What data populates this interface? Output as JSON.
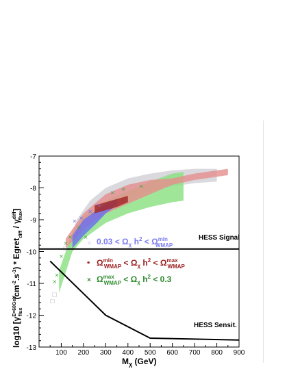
{
  "chart_data": {
    "type": "scatter",
    "xlabel_main": "M",
    "xlabel_sub": "χ",
    "xlabel_unit": " (GeV)",
    "ylabel": "log10 [γ_flux^{E=60GeV} (cm⁻².s⁻¹) * Egret_diff / γ_flux^diff]",
    "ylabel_parts": {
      "lead": "log10 [γ",
      "sup1": "E=60GeV",
      "sub1": "flux",
      "mid": "(cm",
      "sup2": "-2",
      "mid2": ".s",
      "sup3": "-1",
      "mid3": ") * Egret",
      "sub2": "diff",
      "mid4": " / γ",
      "sup4": "diff",
      "sub3": "flux",
      "tail": "]"
    },
    "xlim": [
      0,
      900
    ],
    "ylim": [
      -13,
      -7
    ],
    "x_ticks": [
      100,
      200,
      300,
      400,
      500,
      600,
      700,
      800,
      900
    ],
    "y_ticks": [
      -13,
      -12,
      -11,
      -10,
      -9,
      -8,
      -7
    ],
    "x_tick_labels": [
      "100",
      "200",
      "300",
      "400",
      "500",
      "600",
      "700",
      "800",
      "900"
    ],
    "y_tick_labels": [
      "-13",
      "-12",
      "-11",
      "-10",
      "-9",
      "-8",
      "-7"
    ],
    "lines": [
      {
        "name": "HESS Signal",
        "x": [
          0,
          900
        ],
        "y": [
          -9.92,
          -9.92
        ]
      },
      {
        "name": "HESS Sensit.",
        "x": [
          50,
          300,
          500,
          900
        ],
        "y": [
          -10.3,
          -12.0,
          -12.72,
          -12.78
        ]
      }
    ],
    "bands": [
      {
        "color": "#cfd0d6",
        "upper": [
          [
            130,
            -9.8
          ],
          [
            170,
            -9.0
          ],
          [
            230,
            -8.4
          ],
          [
            300,
            -8.0
          ],
          [
            400,
            -7.7
          ],
          [
            500,
            -7.55
          ],
          [
            600,
            -7.45
          ],
          [
            700,
            -7.4
          ],
          [
            800,
            -7.4
          ]
        ],
        "lower": [
          [
            800,
            -7.8
          ],
          [
            700,
            -7.85
          ],
          [
            600,
            -7.95
          ],
          [
            500,
            -8.1
          ],
          [
            400,
            -8.3
          ],
          [
            300,
            -8.7
          ],
          [
            230,
            -9.0
          ],
          [
            170,
            -9.6
          ],
          [
            130,
            -10.0
          ]
        ]
      },
      {
        "color": "#88e07e",
        "upper": [
          [
            90,
            -10.6
          ],
          [
            150,
            -9.4
          ],
          [
            200,
            -8.9
          ],
          [
            300,
            -8.4
          ],
          [
            400,
            -8.1
          ],
          [
            500,
            -7.8
          ],
          [
            600,
            -7.55
          ],
          [
            650,
            -7.5
          ]
        ],
        "lower": [
          [
            650,
            -8.4
          ],
          [
            600,
            -8.45
          ],
          [
            500,
            -8.6
          ],
          [
            400,
            -8.8
          ],
          [
            300,
            -9.1
          ],
          [
            200,
            -9.6
          ],
          [
            150,
            -10.0
          ],
          [
            90,
            -11.3
          ]
        ]
      },
      {
        "color": "#e68d8d",
        "upper": [
          [
            120,
            -9.6
          ],
          [
            200,
            -8.8
          ],
          [
            300,
            -8.2
          ],
          [
            400,
            -7.9
          ],
          [
            500,
            -7.75
          ],
          [
            600,
            -7.7
          ],
          [
            700,
            -7.55
          ],
          [
            850,
            -7.4
          ]
        ],
        "lower": [
          [
            850,
            -7.6
          ],
          [
            700,
            -7.75
          ],
          [
            600,
            -7.9
          ],
          [
            500,
            -8.2
          ],
          [
            400,
            -8.5
          ],
          [
            300,
            -8.8
          ],
          [
            200,
            -9.3
          ],
          [
            120,
            -9.9
          ]
        ]
      },
      {
        "color": "#6a6ef0",
        "upper": [
          [
            150,
            -9.5
          ],
          [
            200,
            -9.0
          ],
          [
            260,
            -8.7
          ],
          [
            300,
            -8.5
          ],
          [
            350,
            -8.35
          ]
        ],
        "lower": [
          [
            350,
            -8.55
          ],
          [
            300,
            -8.8
          ],
          [
            260,
            -9.1
          ],
          [
            200,
            -9.5
          ],
          [
            150,
            -9.9
          ]
        ]
      },
      {
        "color": "#a52a2a",
        "upper": [
          [
            250,
            -8.55
          ],
          [
            300,
            -8.45
          ],
          [
            350,
            -8.35
          ],
          [
            400,
            -8.25
          ]
        ],
        "lower": [
          [
            400,
            -8.45
          ],
          [
            350,
            -8.6
          ],
          [
            300,
            -8.7
          ],
          [
            250,
            -8.8
          ]
        ]
      }
    ],
    "scatter_points": [
      {
        "series": "green",
        "x": 70,
        "y": -11.0
      },
      {
        "series": "green",
        "x": 80,
        "y": -10.8
      },
      {
        "series": "green",
        "x": 100,
        "y": -10.2
      },
      {
        "series": "green",
        "x": 120,
        "y": -9.8
      },
      {
        "series": "green",
        "x": 140,
        "y": -9.6
      },
      {
        "series": "green",
        "x": 180,
        "y": -9.3
      },
      {
        "series": "green",
        "x": 210,
        "y": -9.6
      },
      {
        "series": "green",
        "x": 330,
        "y": -8.2
      },
      {
        "series": "green",
        "x": 380,
        "y": -8.1
      },
      {
        "series": "green",
        "x": 460,
        "y": -8.0
      },
      {
        "series": "blue",
        "x": 160,
        "y": -9.1
      },
      {
        "series": "blue",
        "x": 190,
        "y": -9.0
      },
      {
        "series": "blue",
        "x": 230,
        "y": -8.8
      },
      {
        "series": "blue",
        "x": 270,
        "y": -8.6
      },
      {
        "series": "gray",
        "x": 60,
        "y": -11.6
      },
      {
        "series": "gray",
        "x": 70,
        "y": -11.4
      },
      {
        "series": "gray",
        "x": 120,
        "y": -9.95
      }
    ],
    "annotations": {
      "hess_signal": "HESS Signal",
      "hess_sensit": "HESS Sensit.",
      "legend1": {
        "marker": "○",
        "lo": "0.03 < Ω",
        "lo_sub": "χ",
        "mid": " h",
        "sup": "2",
        "cmp": " < Ω",
        "hi_sup": "min",
        "hi_sub": "WMAP",
        "color": "#7b7bf2"
      },
      "legend2": {
        "marker": "*",
        "a": "Ω",
        "a_sup": "min",
        "a_sub": "WMAP",
        "mid": " < Ω",
        "mid_sub": "χ",
        "h": " h",
        "sup": "2",
        "cmp": " < Ω",
        "b_sup": "max",
        "b_sub": "WMAP",
        "color": "#9b1b1b"
      },
      "legend3": {
        "marker": "×",
        "a": "Ω",
        "a_sup": "max",
        "a_sub": "WMAP",
        "mid": " < Ω",
        "mid_sub": "χ",
        "h": " h",
        "sup": "2",
        "tail": " < 0.3",
        "color": "#2e8b2e"
      }
    },
    "grid": false,
    "colors": {
      "gray_band": "#cfd0d6",
      "green": "#3aa63a",
      "red": "#e06b6b",
      "blue": "#6a6ef0",
      "darkred": "#9b1b1b"
    }
  }
}
